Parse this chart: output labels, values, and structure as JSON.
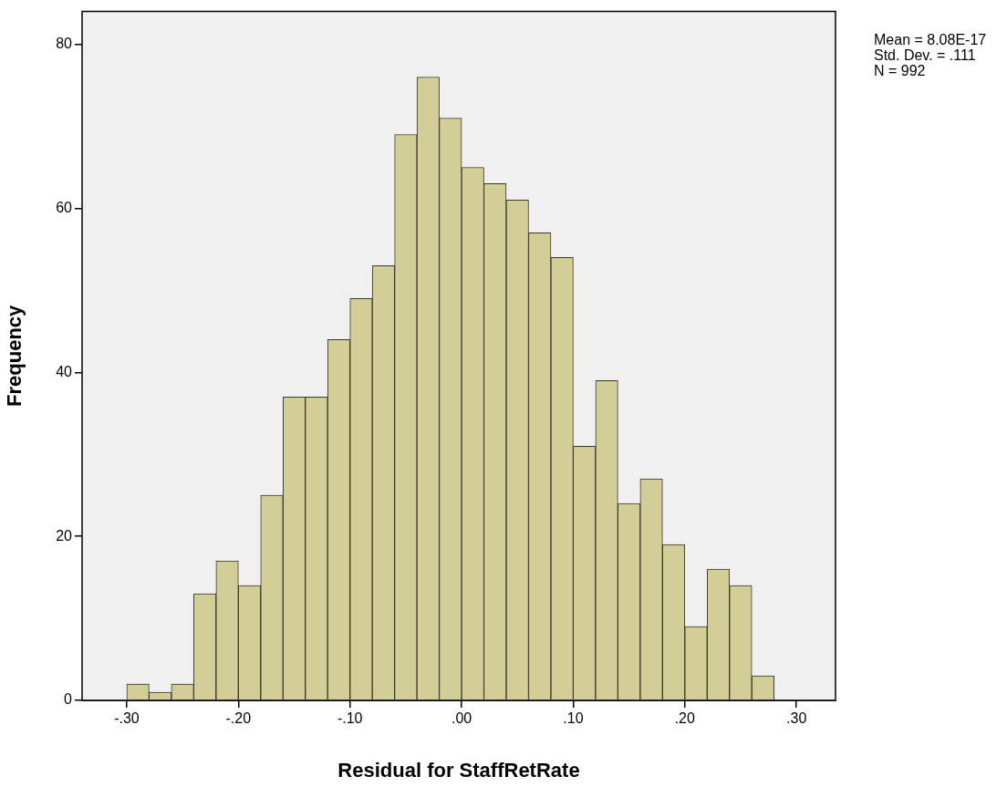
{
  "chart_data": {
    "type": "histogram",
    "xlabel": "Residual for StaffRetRate",
    "ylabel": "Frequency",
    "bins": [
      -0.3,
      -0.28,
      -0.26,
      -0.24,
      -0.22,
      -0.2,
      -0.18,
      -0.16,
      -0.14,
      -0.12,
      -0.1,
      -0.08,
      -0.06,
      -0.04,
      -0.02,
      0.0,
      0.02,
      0.04,
      0.06,
      0.08,
      0.1,
      0.12,
      0.14,
      0.16,
      0.18,
      0.2,
      0.22,
      0.24,
      0.26,
      0.28
    ],
    "values": [
      2,
      1,
      2,
      13,
      17,
      14,
      25,
      37,
      37,
      44,
      49,
      53,
      69,
      76,
      71,
      65,
      63,
      61,
      57,
      54,
      31,
      39,
      24,
      27,
      19,
      9,
      16,
      14,
      3
    ],
    "color": "#d3ce97",
    "xlim": [
      -0.34,
      0.335
    ],
    "xticks": [
      {
        "value": -0.3,
        "label": "-.30"
      },
      {
        "value": -0.2,
        "label": "-.20"
      },
      {
        "value": -0.1,
        "label": "-.10"
      },
      {
        "value": 0,
        "label": ".00"
      },
      {
        "value": 0.1,
        "label": ".10"
      },
      {
        "value": 0.2,
        "label": ".20"
      },
      {
        "value": 0.3,
        "label": ".30"
      }
    ],
    "ylim": [
      0,
      84
    ],
    "yticks": [
      0,
      20,
      40,
      60,
      80
    ],
    "annotations": [
      "Mean = 8.08E-17",
      "Std. Dev. = .111",
      "N = 992"
    ],
    "legend": false
  }
}
